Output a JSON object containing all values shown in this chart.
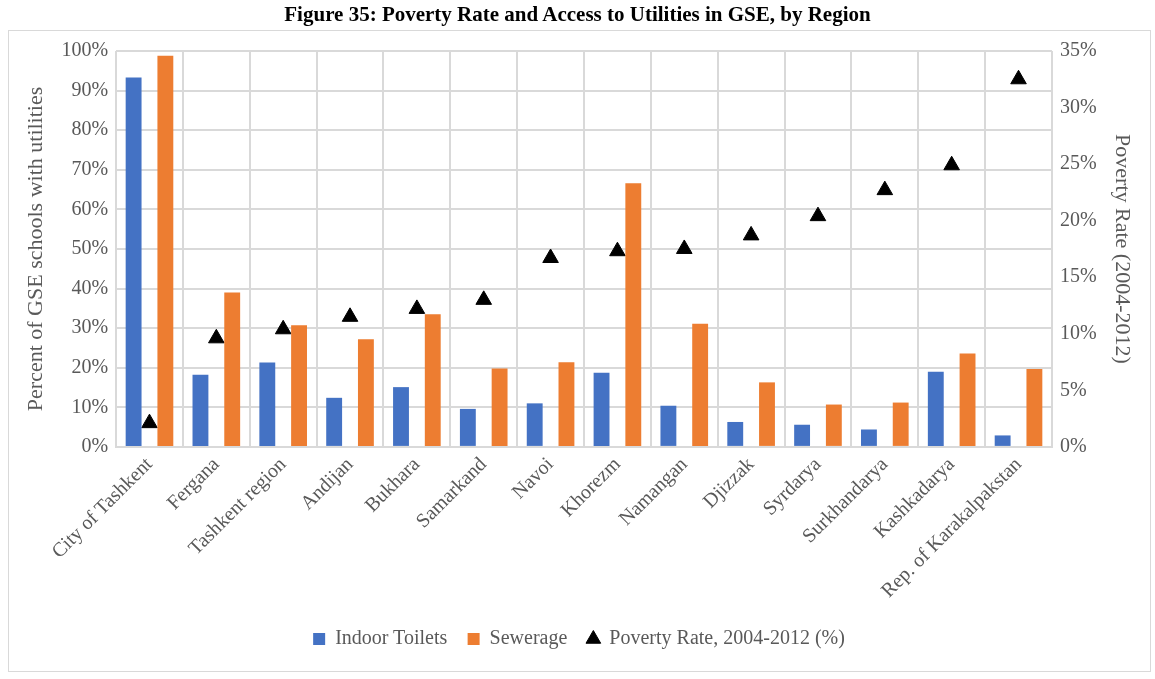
{
  "chart_data": {
    "type": "bar",
    "title": "Figure 35: Poverty Rate and Access to Utilities in GSE, by Region",
    "ylabel": "Percent of GSE schools with utilities",
    "y2label": "Poverty Rate (2004-2012)",
    "categories": [
      "City of Tashkent",
      "Fergana",
      "Tashkent region",
      "Andijan",
      "Bukhara",
      "Samarkand",
      "Navoi",
      "Khorezm",
      "Namangan",
      "Djizzak",
      "Syrdarya",
      "Surkhandarya",
      "Kashkadarya",
      "Rep. of Karakalpakstan"
    ],
    "series": [
      {
        "name": "Indoor Toilets",
        "color": "#4472c4",
        "values": [
          93.3,
          18.2,
          21.3,
          12.4,
          15.1,
          9.6,
          11,
          18.7,
          10.4,
          6.3,
          5.6,
          4.4,
          19,
          2.9
        ]
      },
      {
        "name": "Sewerage",
        "color": "#ed7d31",
        "values": [
          98.8,
          39,
          30.7,
          27.2,
          33.5,
          19.8,
          21.4,
          66.6,
          31.1,
          16.3,
          10.7,
          11.2,
          23.6,
          19.7
        ]
      },
      {
        "name": "Poverty Rate, 2004-2012 (%)",
        "type": "scatter",
        "axis": "y2",
        "marker": "triangle",
        "color": "#000000",
        "values": [
          2.1,
          9.6,
          10.4,
          11.5,
          12.2,
          13,
          16.7,
          17.3,
          17.5,
          18.7,
          20.4,
          22.7,
          24.9,
          32.5
        ]
      }
    ],
    "ylim": [
      0,
      100
    ],
    "yticks": [
      {
        "value": 0,
        "label": "0%"
      },
      {
        "value": 10,
        "label": "10%"
      },
      {
        "value": 20,
        "label": "20%"
      },
      {
        "value": 30,
        "label": "30%"
      },
      {
        "value": 40,
        "label": "40%"
      },
      {
        "value": 50,
        "label": "50%"
      },
      {
        "value": 60,
        "label": "60%"
      },
      {
        "value": 70,
        "label": "70%"
      },
      {
        "value": 80,
        "label": "80%"
      },
      {
        "value": 90,
        "label": "90%"
      },
      {
        "value": 100,
        "label": "100%"
      }
    ],
    "y2lim": [
      0,
      35
    ],
    "y2ticks": [
      {
        "value": 0,
        "label": "0%"
      },
      {
        "value": 5,
        "label": "5%"
      },
      {
        "value": 10,
        "label": "10%"
      },
      {
        "value": 15,
        "label": "15%"
      },
      {
        "value": 20,
        "label": "20%"
      },
      {
        "value": 25,
        "label": "25%"
      },
      {
        "value": 30,
        "label": "30%"
      },
      {
        "value": 35,
        "label": "35%"
      }
    ],
    "grid": true,
    "legend": "bottom"
  }
}
